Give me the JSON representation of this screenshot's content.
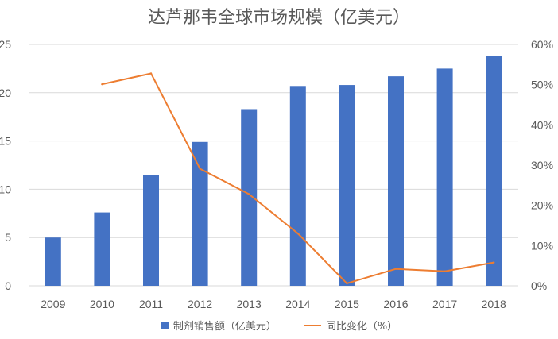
{
  "chart_data": {
    "type": "bar+line",
    "title": "达芦那韦全球市场规模（亿美元）",
    "categories": [
      "2009",
      "2010",
      "2011",
      "2012",
      "2013",
      "2014",
      "2015",
      "2016",
      "2017",
      "2018"
    ],
    "series": [
      {
        "name": "制剂销售额（亿美元）",
        "type": "bar",
        "axis": "left",
        "color": "#4472C4",
        "values": [
          5.0,
          7.6,
          11.5,
          14.9,
          18.3,
          20.7,
          20.8,
          21.7,
          22.5,
          23.8
        ]
      },
      {
        "name": "同比变化（%）",
        "type": "line",
        "axis": "right",
        "color": "#ED7D31",
        "values": [
          null,
          50.1,
          52.8,
          29.1,
          22.8,
          13.0,
          0.6,
          4.2,
          3.6,
          5.8
        ]
      }
    ],
    "y_left": {
      "min": 0,
      "max": 25,
      "ticks": [
        "0",
        "5",
        "10",
        "15",
        "20",
        "25"
      ]
    },
    "y_right": {
      "min": 0,
      "max": 60,
      "ticks": [
        "0%",
        "10%",
        "20%",
        "30%",
        "40%",
        "50%",
        "60%"
      ]
    },
    "grid": true,
    "legend_position": "bottom"
  }
}
